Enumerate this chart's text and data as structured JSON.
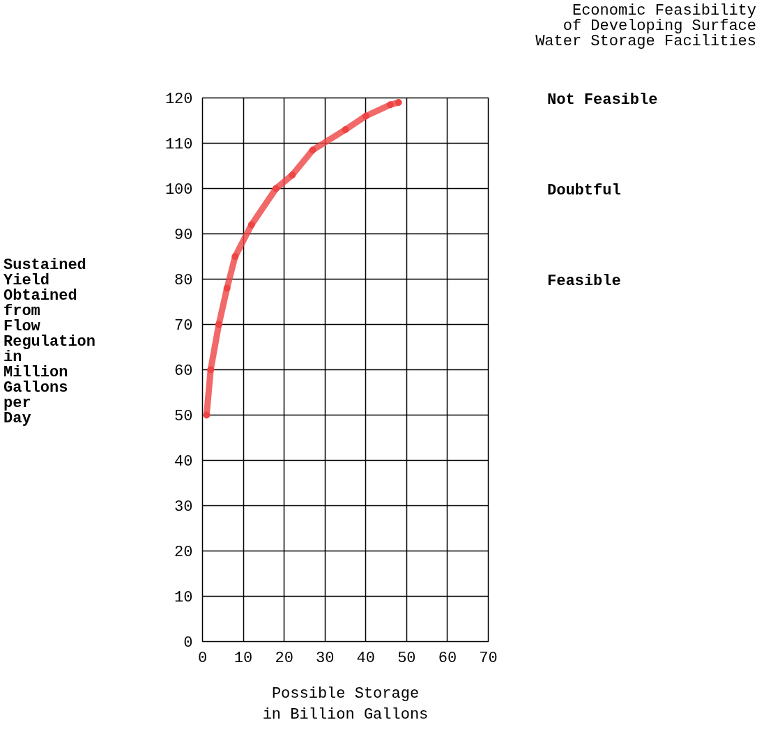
{
  "chart_data": {
    "type": "line",
    "title": "Economic Feasibility\nof Developing Surface\nWater Storage Facilities",
    "xlabel": "Possible Storage\nin Billion Gallons",
    "ylabel": "Sustained\nYield\nObtained\nfrom\nFlow\nRegulation\nin\nMillion\nGallons\nper\nDay",
    "x": [
      1,
      2,
      4,
      6,
      8,
      12,
      18,
      22,
      27,
      35,
      40,
      46,
      48
    ],
    "series": [
      {
        "color": "#ee4444",
        "values": [
          50,
          60,
          70,
          78,
          85,
          92,
          100,
          103,
          108.5,
          113,
          116,
          118.5,
          119
        ]
      }
    ],
    "xlim": [
      0,
      70
    ],
    "ylim": [
      0,
      120
    ],
    "xticks": [
      0,
      10,
      20,
      30,
      40,
      50,
      60,
      70
    ],
    "yticks": [
      0,
      10,
      20,
      30,
      40,
      50,
      60,
      70,
      80,
      90,
      100,
      110,
      120
    ],
    "grid": true,
    "marker": "circle",
    "line_style": "solid",
    "annotations": [
      "Not Feasible",
      "Doubtful",
      "Feasible"
    ]
  }
}
